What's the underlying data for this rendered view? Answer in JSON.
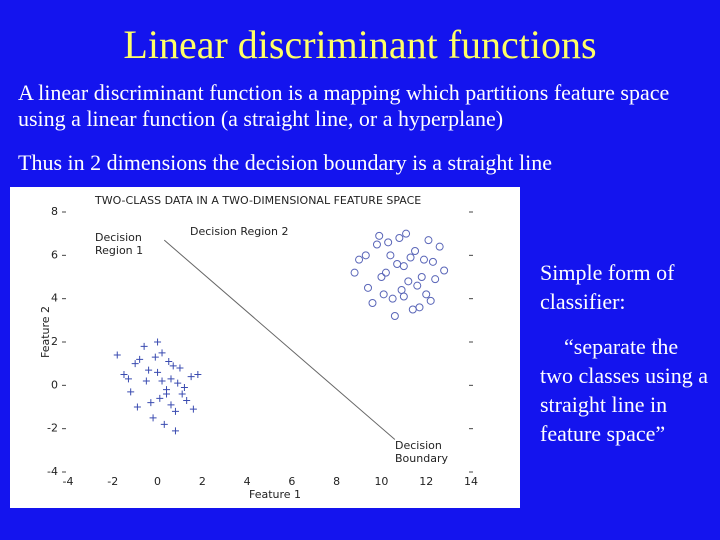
{
  "slide": {
    "title": "Linear discriminant functions",
    "paragraphs": [
      "A linear discriminant function is a mapping which partitions feature space using a linear function (a straight line, or a hyperplane)",
      "Thus in 2 dimensions the decision boundary is a straight line"
    ],
    "side_text": [
      "Simple form of classifier:",
      "“separate the two classes using a straight line in feature space”"
    ]
  },
  "chart_data": {
    "type": "scatter",
    "title": "TWO-CLASS DATA IN A TWO-DIMENSIONAL FEATURE SPACE",
    "x_label": "Feature 1",
    "y_label": "Feature 2",
    "xlim": [
      -4,
      14
    ],
    "ylim": [
      -4,
      8
    ],
    "xticks": [
      -4,
      -2,
      0,
      2,
      4,
      6,
      8,
      10,
      12,
      14
    ],
    "yticks": [
      -4,
      -2,
      0,
      2,
      4,
      6,
      8
    ],
    "series": [
      {
        "marker": "plus",
        "color": "#3a4bb0",
        "x": [
          -1.5,
          -1.2,
          -0.8,
          -0.5,
          -0.3,
          0,
          0.2,
          0.4,
          0.6,
          0.8,
          1,
          1.2,
          1.5,
          -1,
          -0.6,
          -0.2,
          0.1,
          0.5,
          0.9,
          1.3,
          -1.8,
          -0.9,
          0,
          0.3,
          0.7,
          1.1,
          -0.4,
          0.2,
          0.6,
          1.8,
          -1.3,
          -0.1,
          0.4,
          1.6,
          0.8
        ],
        "values": [
          0.5,
          -0.3,
          1.2,
          0.2,
          -0.8,
          0.6,
          1.5,
          -0.4,
          0.3,
          -1.2,
          0.8,
          -0.1,
          0.4,
          1,
          1.8,
          -1.5,
          -0.6,
          1.1,
          0.1,
          -0.7,
          1.4,
          -1,
          2,
          -1.8,
          0.9,
          -0.4,
          0.7,
          0.2,
          -0.9,
          0.5,
          0.3,
          1.3,
          -0.2,
          -1.1,
          -2.1
        ]
      },
      {
        "marker": "circle",
        "color": "#5a66b8",
        "x": [
          9,
          9.4,
          9.8,
          10.2,
          10.5,
          10.8,
          11,
          11.2,
          11.5,
          11.8,
          12,
          12.3,
          12.6,
          9.6,
          10,
          10.4,
          10.9,
          11.3,
          11.7,
          12.1,
          12.8,
          8.8,
          10.6,
          11.1,
          11.6,
          10.1,
          9.9,
          11.4,
          12.4,
          10.7,
          11.9,
          10.3,
          11,
          12.2,
          9.3
        ],
        "values": [
          5.8,
          4.5,
          6.5,
          5.2,
          4,
          6.8,
          5.5,
          4.8,
          6.2,
          5,
          4.2,
          5.7,
          6.4,
          3.8,
          5,
          6,
          4.4,
          5.9,
          3.6,
          6.7,
          5.3,
          5.2,
          3.2,
          7,
          4.6,
          4.2,
          6.9,
          3.5,
          4.9,
          5.6,
          5.8,
          6.6,
          4.1,
          3.9,
          6
        ]
      }
    ],
    "boundary": {
      "x": [
        0.3,
        10.6
      ],
      "y": [
        6.7,
        -2.5
      ]
    },
    "annotations": [
      "Decision Region 1",
      "Decision Region 2",
      "Decision Boundary"
    ]
  }
}
